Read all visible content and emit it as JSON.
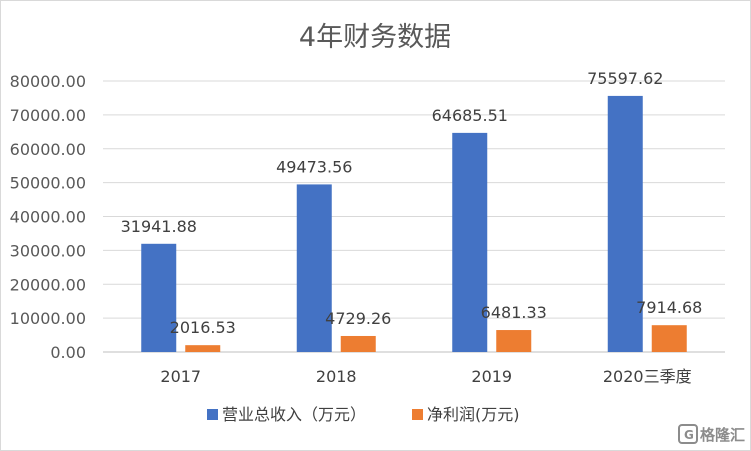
{
  "chart_data": {
    "type": "bar",
    "title": "4年财务数据",
    "categories": [
      "2017",
      "2018",
      "2019",
      "2020三季度"
    ],
    "series": [
      {
        "name": "营业总收入（万元）",
        "color": "#4472C4",
        "values": [
          31941.88,
          49473.56,
          64685.51,
          75597.62
        ],
        "labels": [
          "31941.88",
          "49473.56",
          "64685.51",
          "75597.62"
        ]
      },
      {
        "name": "净利润(万元)",
        "color": "#ED7D31",
        "values": [
          2016.53,
          4729.26,
          6481.33,
          7914.68
        ],
        "labels": [
          "2016.53",
          "4729.26",
          "6481.33",
          "7914.68"
        ]
      }
    ],
    "ylim": [
      0,
      80000
    ],
    "yticks": [
      "0.00",
      "10000.00",
      "20000.00",
      "30000.00",
      "40000.00",
      "50000.00",
      "60000.00",
      "70000.00",
      "80000.00"
    ],
    "grid": true,
    "legend_position": "bottom"
  },
  "watermark": {
    "text": "格隆汇",
    "icon": "gelonghui-logo-icon"
  }
}
